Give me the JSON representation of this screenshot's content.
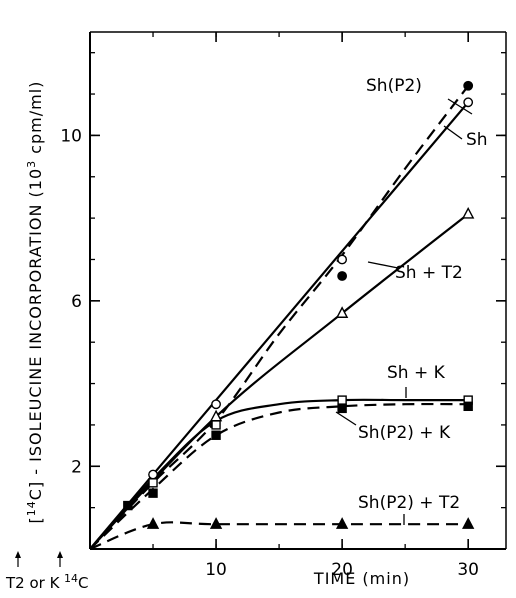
{
  "chart_data": {
    "type": "line",
    "xlabel": "TIME (min)",
    "ylabel": "[14C] - ISOLEUCINE INCORPORATION (10³ cpm/ml)",
    "xlim": [
      0,
      33
    ],
    "ylim": [
      0,
      12.5
    ],
    "x_ticks": [
      10,
      20,
      30
    ],
    "y_ticks": [
      2,
      6,
      10
    ],
    "grid": false,
    "annotations": [
      "T2 or K",
      "14C"
    ],
    "series": [
      {
        "name": "Sh(P2)",
        "line_style": "dashed",
        "marker": "filled-circle",
        "points": [
          [
            20,
            6.6
          ],
          [
            30,
            11.2
          ]
        ],
        "curve": [
          [
            0,
            0
          ],
          [
            5,
            1.6
          ],
          [
            10,
            3.1
          ],
          [
            15,
            5.2
          ],
          [
            20,
            7.1
          ],
          [
            25,
            9.2
          ],
          [
            30,
            11.2
          ]
        ]
      },
      {
        "name": "Sh",
        "line_style": "solid",
        "marker": "open-circle",
        "points": [
          [
            5,
            1.8
          ],
          [
            10,
            3.5
          ],
          [
            20,
            7.0
          ],
          [
            30,
            10.8
          ]
        ],
        "curve": [
          [
            0,
            0
          ],
          [
            10,
            3.6
          ],
          [
            20,
            7.2
          ],
          [
            30,
            10.8
          ]
        ]
      },
      {
        "name": "Sh + T2",
        "line_style": "solid",
        "marker": "open-triangle",
        "points": [
          [
            10,
            3.2
          ],
          [
            20,
            5.7
          ],
          [
            30,
            8.1
          ]
        ],
        "curve": [
          [
            0,
            0
          ],
          [
            10,
            3.2
          ],
          [
            20,
            5.7
          ],
          [
            30,
            8.1
          ]
        ]
      },
      {
        "name": "Sh + K",
        "line_style": "solid",
        "marker": "open-square",
        "points": [
          [
            5,
            1.6
          ],
          [
            10,
            3.0
          ],
          [
            20,
            3.6
          ],
          [
            30,
            3.6
          ]
        ],
        "curve": [
          [
            0,
            0
          ],
          [
            5,
            1.7
          ],
          [
            10,
            3.1
          ],
          [
            15,
            3.5
          ],
          [
            20,
            3.6
          ],
          [
            25,
            3.6
          ],
          [
            30,
            3.6
          ]
        ]
      },
      {
        "name": "Sh(P2) + K",
        "line_style": "dashed",
        "marker": "filled-square",
        "points": [
          [
            3,
            1.05
          ],
          [
            5,
            1.35
          ],
          [
            10,
            2.75
          ],
          [
            20,
            3.4
          ],
          [
            30,
            3.45
          ]
        ],
        "curve": [
          [
            0,
            0
          ],
          [
            5,
            1.45
          ],
          [
            10,
            2.75
          ],
          [
            15,
            3.3
          ],
          [
            20,
            3.45
          ],
          [
            25,
            3.5
          ],
          [
            30,
            3.5
          ]
        ]
      },
      {
        "name": "Sh(P2) + T2",
        "line_style": "dashed",
        "marker": "filled-triangle",
        "points": [
          [
            5,
            0.6
          ],
          [
            10,
            0.6
          ],
          [
            20,
            0.6
          ],
          [
            30,
            0.6
          ]
        ],
        "curve": [
          [
            0,
            0
          ],
          [
            5,
            0.6
          ],
          [
            10,
            0.6
          ],
          [
            20,
            0.6
          ],
          [
            30,
            0.6
          ]
        ]
      }
    ]
  }
}
